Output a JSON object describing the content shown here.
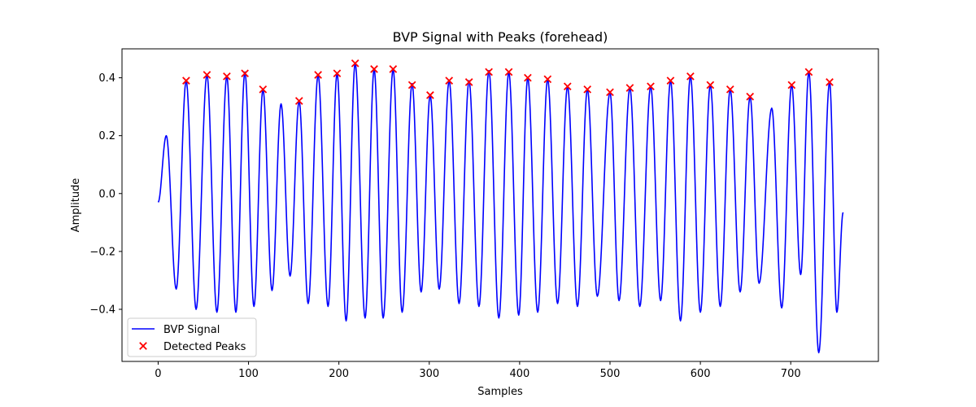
{
  "chart_data": {
    "type": "line",
    "title": "BVP Signal with Peaks (forehead)",
    "xlabel": "Samples",
    "ylabel": "Amplitude",
    "xlim": [
      -40,
      797
    ],
    "ylim": [
      -0.58,
      0.5
    ],
    "xticks": [
      0,
      100,
      200,
      300,
      400,
      500,
      600,
      700
    ],
    "yticks": [
      -0.4,
      -0.2,
      0.0,
      0.2,
      0.4
    ],
    "ytick_labels": [
      "−0.4",
      "−0.2",
      "0.0",
      "0.2",
      "0.4"
    ],
    "grid": false,
    "legend_position": "lower-left",
    "series": [
      {
        "name": "BVP Signal",
        "kind": "line",
        "color": "#0000ff",
        "points": [
          [
            0,
            -0.03
          ],
          [
            9,
            0.2
          ],
          [
            20,
            -0.33
          ],
          [
            31,
            0.39
          ],
          [
            42,
            -0.4
          ],
          [
            54,
            0.41
          ],
          [
            65,
            -0.41
          ],
          [
            76,
            0.405
          ],
          [
            86,
            -0.41
          ],
          [
            96,
            0.42
          ],
          [
            106,
            -0.39
          ],
          [
            116,
            0.36
          ],
          [
            126,
            -0.335
          ],
          [
            136,
            0.31
          ],
          [
            146,
            -0.285
          ],
          [
            156,
            0.32
          ],
          [
            166,
            -0.38
          ],
          [
            177,
            0.41
          ],
          [
            188,
            -0.39
          ],
          [
            198,
            0.415
          ],
          [
            208,
            -0.44
          ],
          [
            218,
            0.45
          ],
          [
            229,
            -0.43
          ],
          [
            239,
            0.43
          ],
          [
            249,
            -0.43
          ],
          [
            260,
            0.43
          ],
          [
            270,
            -0.41
          ],
          [
            281,
            0.38
          ],
          [
            291,
            -0.34
          ],
          [
            301,
            0.34
          ],
          [
            311,
            -0.33
          ],
          [
            322,
            0.39
          ],
          [
            333,
            -0.38
          ],
          [
            344,
            0.39
          ],
          [
            355,
            -0.39
          ],
          [
            366,
            0.425
          ],
          [
            377,
            -0.43
          ],
          [
            388,
            0.42
          ],
          [
            399,
            -0.42
          ],
          [
            409,
            0.4
          ],
          [
            420,
            -0.41
          ],
          [
            431,
            0.395
          ],
          [
            442,
            -0.38
          ],
          [
            453,
            0.37
          ],
          [
            464,
            -0.39
          ],
          [
            475,
            0.36
          ],
          [
            486,
            -0.355
          ],
          [
            500,
            0.35
          ],
          [
            510,
            -0.37
          ],
          [
            522,
            0.365
          ],
          [
            533,
            -0.39
          ],
          [
            545,
            0.37
          ],
          [
            556,
            -0.37
          ],
          [
            567,
            0.39
          ],
          [
            578,
            -0.44
          ],
          [
            589,
            0.405
          ],
          [
            600,
            -0.41
          ],
          [
            611,
            0.375
          ],
          [
            622,
            -0.39
          ],
          [
            633,
            0.36
          ],
          [
            644,
            -0.34
          ],
          [
            655,
            0.335
          ],
          [
            665,
            -0.31
          ],
          [
            679,
            0.295
          ],
          [
            690,
            -0.395
          ],
          [
            701,
            0.375
          ],
          [
            711,
            -0.28
          ],
          [
            720,
            0.42
          ],
          [
            731,
            -0.55
          ],
          [
            743,
            0.385
          ],
          [
            751,
            -0.41
          ],
          [
            758,
            -0.065
          ]
        ]
      },
      {
        "name": "Detected Peaks",
        "kind": "scatter",
        "marker": "x",
        "color": "#ff0000",
        "points": [
          [
            31,
            0.39
          ],
          [
            54,
            0.41
          ],
          [
            76,
            0.405
          ],
          [
            96,
            0.415
          ],
          [
            116,
            0.36
          ],
          [
            156,
            0.32
          ],
          [
            177,
            0.41
          ],
          [
            198,
            0.415
          ],
          [
            218,
            0.45
          ],
          [
            239,
            0.43
          ],
          [
            260,
            0.43
          ],
          [
            281,
            0.375
          ],
          [
            301,
            0.34
          ],
          [
            322,
            0.39
          ],
          [
            344,
            0.385
          ],
          [
            366,
            0.42
          ],
          [
            388,
            0.42
          ],
          [
            409,
            0.4
          ],
          [
            431,
            0.395
          ],
          [
            453,
            0.37
          ],
          [
            475,
            0.36
          ],
          [
            500,
            0.35
          ],
          [
            522,
            0.365
          ],
          [
            545,
            0.37
          ],
          [
            567,
            0.39
          ],
          [
            589,
            0.405
          ],
          [
            611,
            0.375
          ],
          [
            633,
            0.36
          ],
          [
            655,
            0.335
          ],
          [
            701,
            0.375
          ],
          [
            720,
            0.42
          ],
          [
            743,
            0.385
          ]
        ]
      }
    ],
    "legend": [
      {
        "label": "BVP Signal",
        "color": "#0000ff",
        "marker": "line"
      },
      {
        "label": "Detected Peaks",
        "color": "#ff0000",
        "marker": "x"
      }
    ]
  }
}
